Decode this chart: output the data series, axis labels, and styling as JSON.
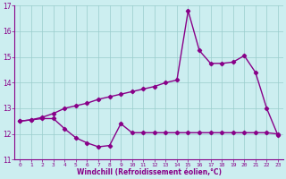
{
  "x": [
    0,
    1,
    2,
    3,
    4,
    5,
    6,
    7,
    8,
    9,
    10,
    11,
    12,
    13,
    14,
    15,
    16,
    17,
    18,
    19,
    20,
    21,
    22,
    23
  ],
  "line1": [
    12.5,
    12.55,
    12.6,
    12.6,
    12.2,
    11.85,
    11.65,
    11.5,
    11.55,
    12.4,
    12.05,
    12.05,
    12.05,
    12.05,
    12.05,
    12.05,
    12.05,
    12.05,
    12.05,
    12.05,
    12.05,
    12.05,
    12.05,
    12.0
  ],
  "line2": [
    12.5,
    12.55,
    12.65,
    12.8,
    13.0,
    13.1,
    13.2,
    13.35,
    13.45,
    13.55,
    13.65,
    13.75,
    13.85,
    14.0,
    14.1,
    16.8,
    15.25,
    14.75,
    14.75,
    14.8,
    15.05,
    14.4,
    13.0,
    11.95
  ],
  "ylim": [
    11,
    17
  ],
  "xlim": [
    -0.5,
    23.5
  ],
  "yticks": [
    11,
    12,
    13,
    14,
    15,
    16,
    17
  ],
  "xticks": [
    0,
    1,
    2,
    3,
    4,
    5,
    6,
    7,
    8,
    9,
    10,
    11,
    12,
    13,
    14,
    15,
    16,
    17,
    18,
    19,
    20,
    21,
    22,
    23
  ],
  "xlabel": "Windchill (Refroidissement éolien,°C)",
  "bg_color": "#cceef0",
  "line_color": "#880088",
  "grid_color": "#99cccc",
  "marker": "D",
  "marker_size": 2.2,
  "line_width": 1.0
}
